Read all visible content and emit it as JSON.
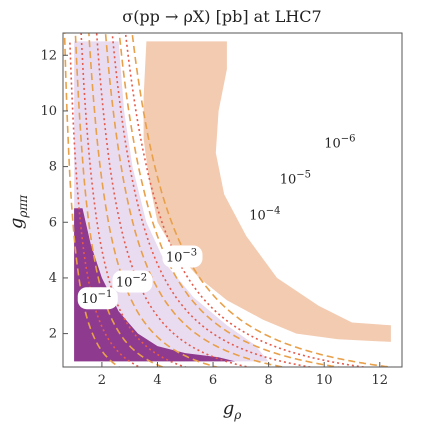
{
  "chart_data": {
    "type": "contour",
    "title": "σ(pp → ρX) [pb] at LHC7",
    "xlabel": "g",
    "xlabel_sub": "ρ",
    "ylabel": "g",
    "ylabel_sub": "ρππ",
    "xlim": [
      0.6,
      12.8
    ],
    "ylim": [
      0.8,
      12.8
    ],
    "x_ticks": [
      "2",
      "4",
      "6",
      "8",
      "10",
      "12"
    ],
    "x_tick_values": [
      2,
      4,
      6,
      8,
      10,
      12
    ],
    "y_ticks": [
      "2",
      "4",
      "6",
      "8",
      "10",
      "12"
    ],
    "y_tick_values": [
      2,
      4,
      6,
      8,
      10,
      12
    ],
    "grid": false,
    "regions": [
      {
        "name": "excluded",
        "color": "#8e3a8e",
        "boundary": [
          [
            1.0,
            6.5
          ],
          [
            1.0,
            1.0
          ],
          [
            6.8,
            1.0
          ],
          [
            6.2,
            1.15
          ],
          [
            5.0,
            1.3
          ],
          [
            4.0,
            1.55
          ],
          [
            3.3,
            2.0
          ],
          [
            2.6,
            2.8
          ],
          [
            2.0,
            4.0
          ],
          [
            1.6,
            5.2
          ],
          [
            1.3,
            6.5
          ]
        ]
      },
      {
        "name": "lavender-band",
        "color": "#eadcf0",
        "boundary": [
          [
            1.0,
            12.5
          ],
          [
            2.6,
            12.5
          ],
          [
            2.8,
            10.0
          ],
          [
            3.1,
            8.0
          ],
          [
            3.6,
            6.0
          ],
          [
            4.3,
            4.5
          ],
          [
            5.3,
            3.3
          ],
          [
            6.5,
            2.3
          ],
          [
            7.5,
            1.6
          ],
          [
            8.0,
            1.0
          ],
          [
            1.0,
            1.0
          ]
        ]
      },
      {
        "name": "peach-band",
        "color": "#f3cbb1",
        "boundary": [
          [
            3.6,
            12.5
          ],
          [
            6.5,
            12.5
          ],
          [
            6.5,
            11.5
          ],
          [
            6.2,
            10.0
          ],
          [
            6.1,
            8.5
          ],
          [
            6.4,
            7.0
          ],
          [
            7.2,
            5.5
          ],
          [
            8.3,
            4.0
          ],
          [
            9.8,
            3.0
          ],
          [
            11.0,
            2.4
          ],
          [
            12.4,
            2.3
          ],
          [
            12.4,
            1.7
          ],
          [
            10.5,
            1.8
          ],
          [
            9.0,
            2.0
          ],
          [
            7.8,
            2.5
          ],
          [
            6.5,
            3.2
          ],
          [
            5.5,
            4.0
          ],
          [
            4.6,
            5.0
          ],
          [
            4.0,
            6.0
          ],
          [
            3.7,
            7.5
          ],
          [
            3.5,
            9.0
          ],
          [
            3.5,
            10.5
          ],
          [
            3.6,
            12.5
          ]
        ]
      }
    ],
    "series": [
      {
        "name": "10^-1",
        "style": "dashed",
        "color": "#e8a04a",
        "k": 5.5
      },
      {
        "name": "",
        "style": "dotted",
        "color": "#e55a4a",
        "k": 9.0
      },
      {
        "name": "10^-2",
        "style": "dashed",
        "color": "#e8a04a",
        "k": 14.0
      },
      {
        "name": "",
        "style": "dotted",
        "color": "#e55a4a",
        "k": 20.0
      },
      {
        "name": "10^-3",
        "style": "dashed",
        "color": "#e8a04a",
        "k": 30.0
      },
      {
        "name": "",
        "style": "dotted",
        "color": "#e55a4a",
        "k": 42.0
      },
      {
        "name": "10^-4",
        "style": "dashed",
        "color": "#e8a04a",
        "k": 58.0
      },
      {
        "name": "",
        "style": "dotted",
        "color": "#e55a4a",
        "k": 72.0
      },
      {
        "name": "10^-5",
        "style": "dashed",
        "color": "#e8a04a",
        "k": 88.0
      },
      {
        "name": "",
        "style": "dotted",
        "color": "#e55a4a",
        "k": 104.0
      },
      {
        "name": "10^-6",
        "style": "dashed",
        "color": "#e8a04a",
        "k": 122.0
      }
    ],
    "annotations": [
      {
        "base": "10",
        "exp": "−1",
        "x": 1.85,
        "y": 3.2
      },
      {
        "base": "10",
        "exp": "−2",
        "x": 3.1,
        "y": 3.8
      },
      {
        "base": "10",
        "exp": "−3",
        "x": 4.9,
        "y": 4.7
      },
      {
        "base": "10",
        "exp": "−4",
        "x": 7.9,
        "y": 6.2
      },
      {
        "base": "10",
        "exp": "−5",
        "x": 9.0,
        "y": 7.5
      },
      {
        "base": "10",
        "exp": "−6",
        "x": 10.6,
        "y": 8.8
      }
    ]
  }
}
